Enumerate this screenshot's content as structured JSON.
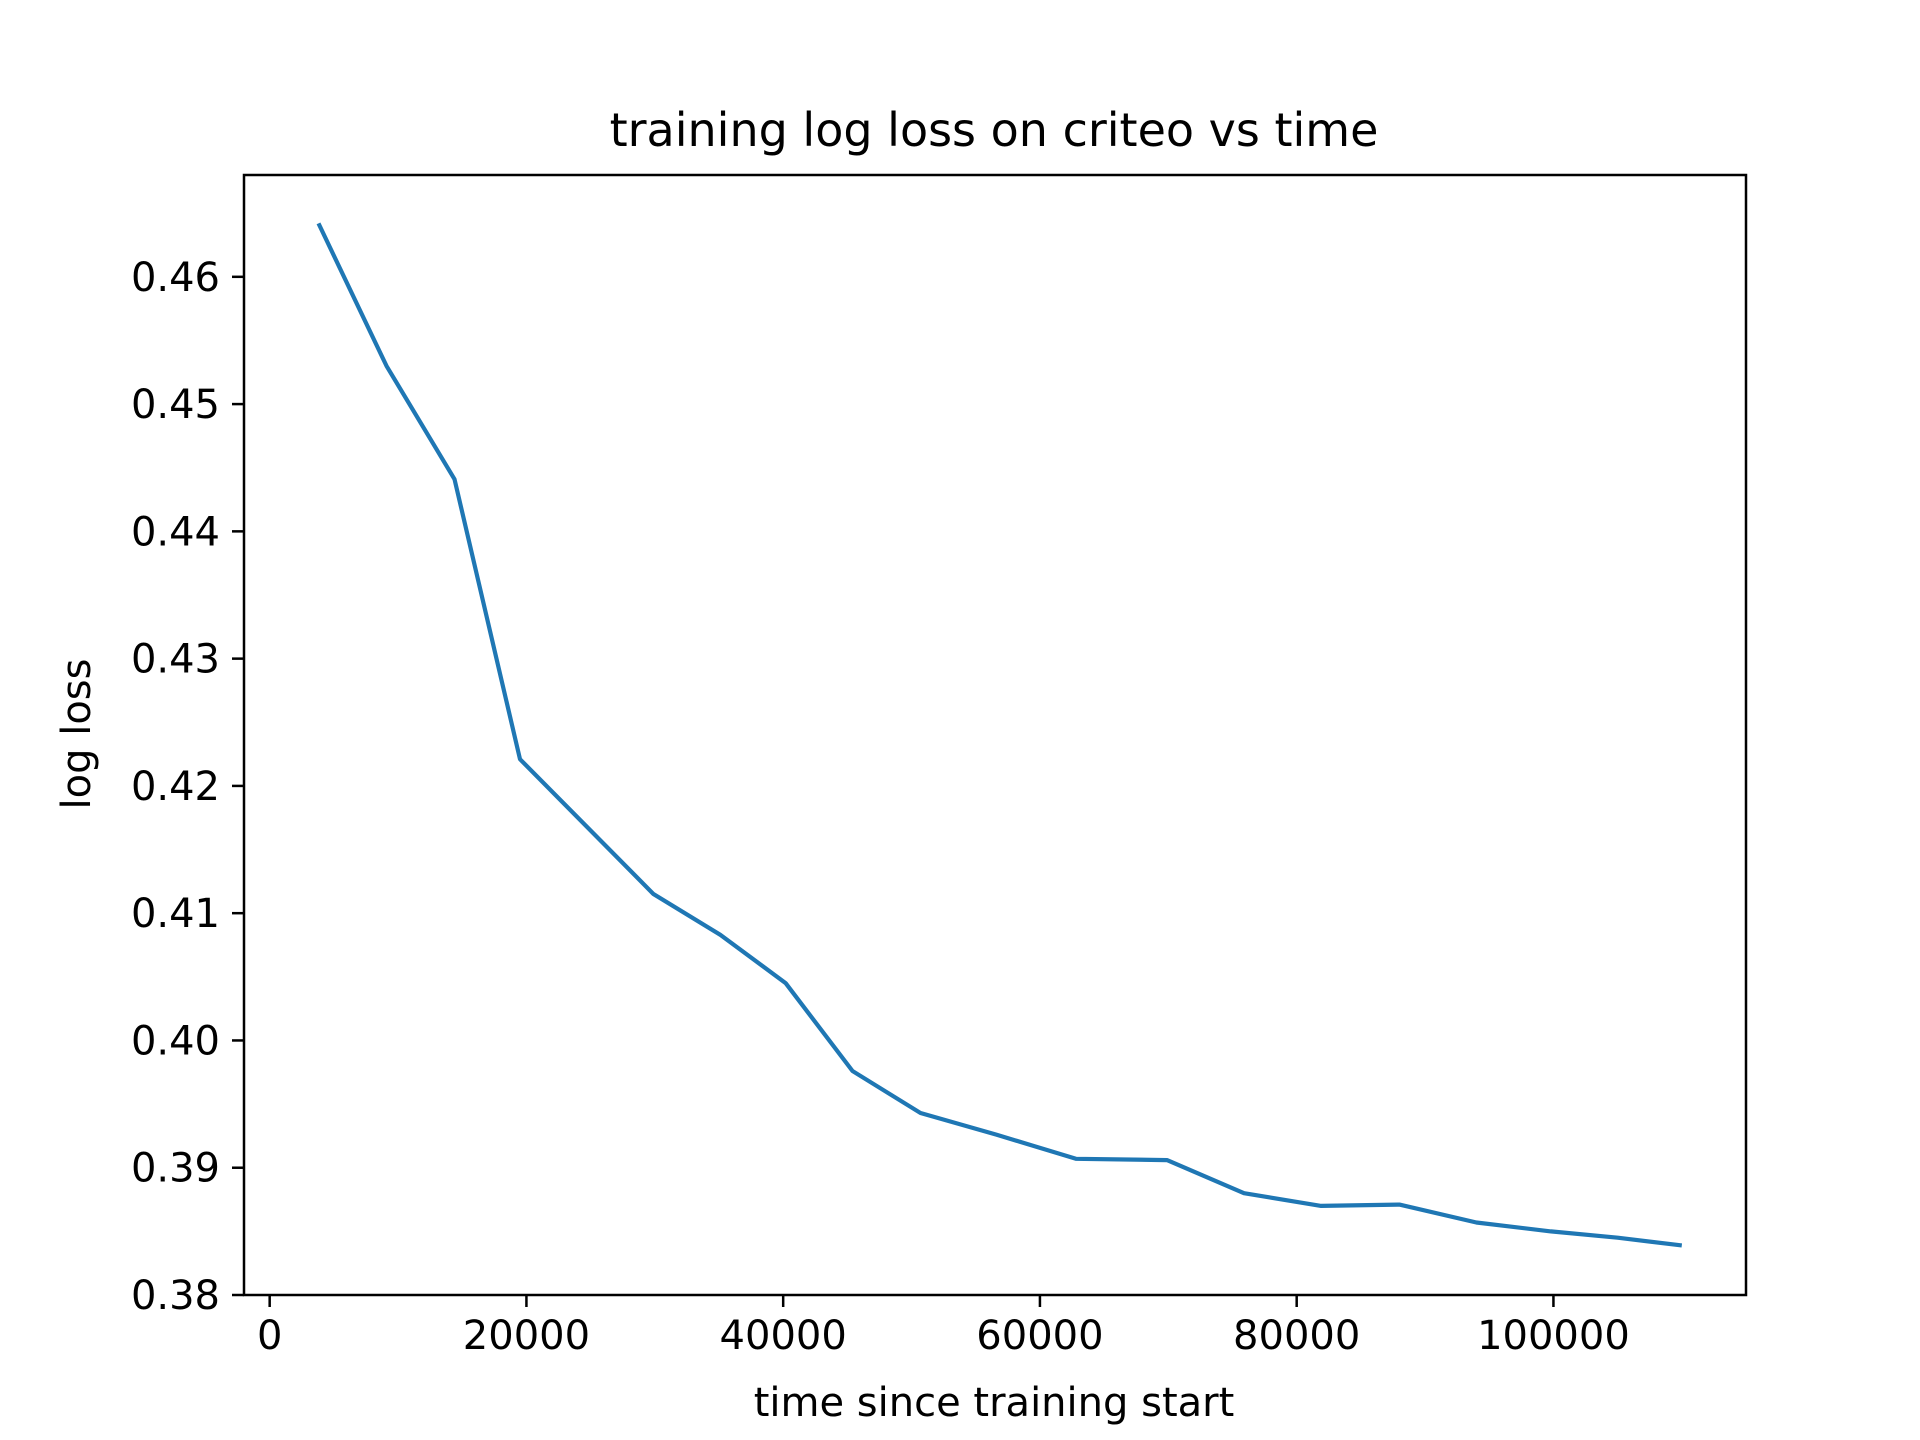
{
  "chart_data": {
    "type": "line",
    "title": "training log loss on criteo vs time",
    "xlabel": "time since training start",
    "ylabel": "log loss",
    "xlim": [
      -2000,
      115000
    ],
    "ylim": [
      0.38,
      0.468
    ],
    "xticks": [
      0,
      20000,
      40000,
      60000,
      80000,
      100000
    ],
    "xtick_labels": [
      "0",
      "20000",
      "40000",
      "60000",
      "80000",
      "100000"
    ],
    "yticks": [
      0.38,
      0.39,
      0.4,
      0.41,
      0.42,
      0.43,
      0.44,
      0.45,
      0.46
    ],
    "ytick_labels": [
      "0.38",
      "0.39",
      "0.40",
      "0.41",
      "0.42",
      "0.43",
      "0.44",
      "0.45",
      "0.46"
    ],
    "grid": false,
    "legend": "none",
    "series": [
      {
        "color": "#1f77b4",
        "x": [
          3800,
          9100,
          14400,
          19500,
          24600,
          29900,
          35100,
          40200,
          45400,
          50700,
          56600,
          62800,
          69900,
          75900,
          81900,
          88000,
          94000,
          99800,
          105000,
          110000
        ],
        "y": [
          0.4642,
          0.453,
          0.4441,
          0.4221,
          0.4169,
          0.4115,
          0.4083,
          0.4045,
          0.3976,
          0.3943,
          0.3926,
          0.3907,
          0.3906,
          0.388,
          0.387,
          0.3871,
          0.3857,
          0.385,
          0.3845,
          0.3839
        ]
      }
    ]
  }
}
